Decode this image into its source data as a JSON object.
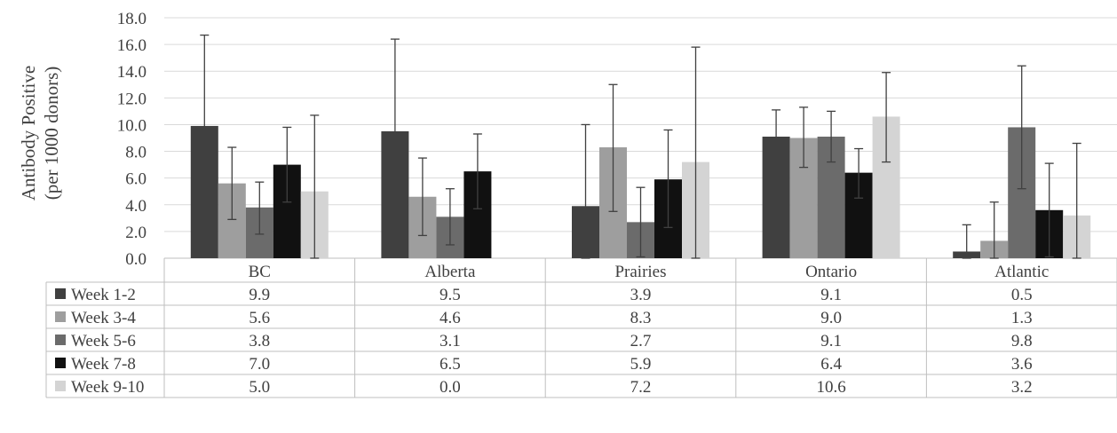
{
  "chart_data": {
    "type": "bar",
    "ylabel_line1": "Antibody Positive",
    "ylabel_line2": "(per 1000 donors)",
    "ylim": [
      0,
      18
    ],
    "ytick_step": 2,
    "yticks": [
      "0.0",
      "2.0",
      "4.0",
      "6.0",
      "8.0",
      "10.0",
      "12.0",
      "14.0",
      "16.0",
      "18.0"
    ],
    "grid": true,
    "legend": "data-table",
    "categories": [
      "BC",
      "Alberta",
      "Prairies",
      "Ontario",
      "Atlantic"
    ],
    "series": [
      {
        "name": "Week 1-2",
        "color": "#404040",
        "values": [
          9.9,
          9.5,
          3.9,
          9.1,
          0.5
        ],
        "labels": [
          "9.9",
          "9.5",
          "3.9",
          "9.1",
          "0.5"
        ],
        "error_low": [
          3.1,
          2.7,
          0.0,
          7.0,
          0.0
        ],
        "error_high": [
          16.7,
          16.4,
          10.0,
          11.1,
          2.5
        ]
      },
      {
        "name": "Week 3-4",
        "color": "#9e9e9e",
        "values": [
          5.6,
          4.6,
          8.3,
          9.0,
          1.3
        ],
        "labels": [
          "5.6",
          "4.6",
          "8.3",
          "9.0",
          "1.3"
        ],
        "error_low": [
          2.9,
          1.7,
          3.5,
          6.8,
          0.0
        ],
        "error_high": [
          8.3,
          7.5,
          13.0,
          11.3,
          4.2
        ]
      },
      {
        "name": "Week 5-6",
        "color": "#6b6b6b",
        "values": [
          3.8,
          3.1,
          2.7,
          9.1,
          9.8
        ],
        "labels": [
          "3.8",
          "3.1",
          "2.7",
          "9.1",
          "9.8"
        ],
        "error_low": [
          1.8,
          1.0,
          0.1,
          7.2,
          5.2
        ],
        "error_high": [
          5.7,
          5.2,
          5.3,
          11.0,
          14.4
        ]
      },
      {
        "name": "Week 7-8",
        "color": "#111111",
        "values": [
          7.0,
          6.5,
          5.9,
          6.4,
          3.6
        ],
        "labels": [
          "7.0",
          "6.5",
          "5.9",
          "6.4",
          "3.6"
        ],
        "error_low": [
          4.2,
          3.7,
          2.3,
          4.5,
          0.1
        ],
        "error_high": [
          9.8,
          9.3,
          9.6,
          8.2,
          7.1
        ]
      },
      {
        "name": "Week 9-10",
        "color": "#d4d4d4",
        "values": [
          5.0,
          0.0,
          7.2,
          10.6,
          3.2
        ],
        "labels": [
          "5.0",
          "0.0",
          "7.2",
          "10.6",
          "3.2"
        ],
        "error_low": [
          0.0,
          0.0,
          0.0,
          7.2,
          0.0
        ],
        "error_high": [
          10.7,
          0.0,
          15.8,
          13.9,
          8.6
        ]
      }
    ]
  }
}
